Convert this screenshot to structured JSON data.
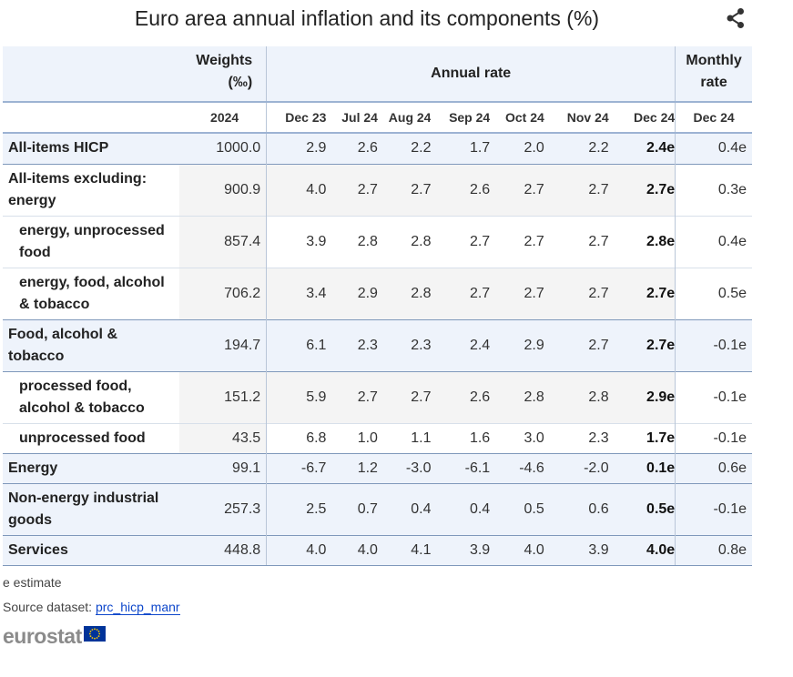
{
  "title": "Euro area annual inflation and its components (%)",
  "header": {
    "weights_label": "Weights",
    "weights_unit": "(‰)",
    "annual_rate_label": "Annual rate",
    "monthly_rate_label": "Monthly rate"
  },
  "chart_data": {
    "type": "table",
    "columns": [
      "2024",
      "Dec 23",
      "Jul 24",
      "Aug 24",
      "Sep 24",
      "Oct 24",
      "Nov 24",
      "Dec 24",
      "Dec 24"
    ],
    "rows": [
      {
        "label": "All-items HICP",
        "indent": 0,
        "weight": "1000.0",
        "values": [
          "2.9",
          "2.6",
          "2.2",
          "1.7",
          "2.0",
          "2.2"
        ],
        "current": "2.4e",
        "monthly": "0.4e"
      },
      {
        "label": "All-items excluding: energy",
        "indent": 0,
        "weight": "900.9",
        "values": [
          "4.0",
          "2.7",
          "2.7",
          "2.6",
          "2.7",
          "2.7"
        ],
        "current": "2.7e",
        "monthly": "0.3e"
      },
      {
        "label": "energy, unprocessed food",
        "indent": 1,
        "weight": "857.4",
        "values": [
          "3.9",
          "2.8",
          "2.8",
          "2.7",
          "2.7",
          "2.7"
        ],
        "current": "2.8e",
        "monthly": "0.4e"
      },
      {
        "label": "energy, food, alcohol & tobacco",
        "indent": 1,
        "weight": "706.2",
        "values": [
          "3.4",
          "2.9",
          "2.8",
          "2.7",
          "2.7",
          "2.7"
        ],
        "current": "2.7e",
        "monthly": "0.5e"
      },
      {
        "label": "Food, alcohol & tobacco",
        "indent": 0,
        "weight": "194.7",
        "values": [
          "6.1",
          "2.3",
          "2.3",
          "2.4",
          "2.9",
          "2.7"
        ],
        "current": "2.7e",
        "monthly": "-0.1e"
      },
      {
        "label": "processed food, alcohol & tobacco",
        "indent": 1,
        "weight": "151.2",
        "values": [
          "5.9",
          "2.7",
          "2.7",
          "2.6",
          "2.8",
          "2.8"
        ],
        "current": "2.9e",
        "monthly": "-0.1e"
      },
      {
        "label": "unprocessed food",
        "indent": 1,
        "weight": "43.5",
        "values": [
          "6.8",
          "1.0",
          "1.1",
          "1.6",
          "3.0",
          "2.3"
        ],
        "current": "1.7e",
        "monthly": "-0.1e"
      },
      {
        "label": "Energy",
        "indent": 0,
        "weight": "99.1",
        "values": [
          "-6.7",
          "1.2",
          "-3.0",
          "-6.1",
          "-4.6",
          "-2.0"
        ],
        "current": "0.1e",
        "monthly": "0.6e"
      },
      {
        "label": "Non-energy industrial goods",
        "indent": 0,
        "weight": "257.3",
        "values": [
          "2.5",
          "0.7",
          "0.4",
          "0.4",
          "0.5",
          "0.6"
        ],
        "current": "0.5e",
        "monthly": "-0.1e"
      },
      {
        "label": "Services",
        "indent": 0,
        "weight": "448.8",
        "values": [
          "4.0",
          "4.0",
          "4.1",
          "3.9",
          "4.0",
          "3.9"
        ],
        "current": "4.0e",
        "monthly": "0.8e"
      }
    ]
  },
  "footer": {
    "estimate_note": "e estimate",
    "source_label": "Source dataset:",
    "source_link": "prc_hicp_manr",
    "logo_text": "eurostat"
  },
  "colors": {
    "header_bg": "#eef3fb",
    "row_bg": "#f4f4f4",
    "divider": "#7f98bb",
    "link": "#0e47cb",
    "logo_grey": "#8b8b8b",
    "eu_blue": "#003399",
    "eu_yellow": "#ffcc00"
  },
  "icons": {
    "share": "share-icon",
    "flag": "eu-flag-icon"
  }
}
